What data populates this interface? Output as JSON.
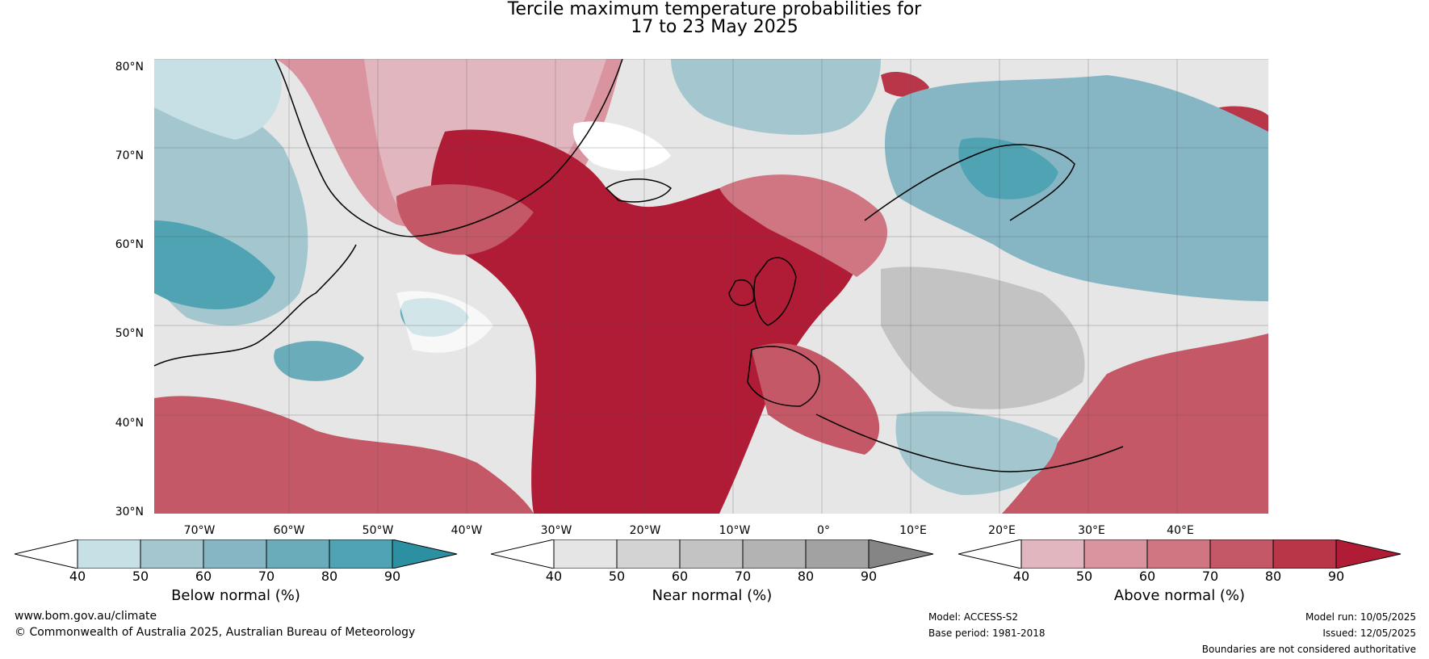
{
  "title_line1": "Tercile maximum temperature probabilities for",
  "title_line2": "17 to 23 May 2025",
  "latitudes": [
    "80°N",
    "70°N",
    "60°N",
    "50°N",
    "40°N",
    "30°N"
  ],
  "longitudes": [
    "70°W",
    "60°W",
    "50°W",
    "40°W",
    "30°W",
    "20°W",
    "10°W",
    "0°",
    "10°E",
    "20°E",
    "30°E",
    "40°E"
  ],
  "colorbars": [
    {
      "label": "Below normal (%)",
      "ticks": [
        "40",
        "50",
        "60",
        "70",
        "80",
        "90"
      ],
      "colors": [
        "#c7e0e6",
        "#a4c7cf",
        "#86b6c4",
        "#6aacb9",
        "#4fa3b3"
      ],
      "extend_color": "#2c8fa2"
    },
    {
      "label": "Near normal (%)",
      "ticks": [
        "40",
        "50",
        "60",
        "70",
        "80",
        "90"
      ],
      "colors": [
        "#e5e5e5",
        "#d3d3d3",
        "#c3c3c3",
        "#b3b3b3",
        "#a2a2a2"
      ],
      "extend_color": "#858585"
    },
    {
      "label": "Above normal (%)",
      "ticks": [
        "40",
        "50",
        "60",
        "70",
        "80",
        "90"
      ],
      "colors": [
        "#e2b6bf",
        "#d9949f",
        "#cf7682",
        "#c55866",
        "#b93548"
      ],
      "extend_color": "#b01c35"
    }
  ],
  "footer": {
    "website": "www.bom.gov.au/climate",
    "copyright": "© Commonwealth of Australia 2025, Australian Bureau of Meteorology",
    "model": "Model: ACCESS-S2",
    "base_period": "Base period: 1981-2018",
    "model_run": "Model run: 10/05/2025",
    "issued": "Issued: 12/05/2025",
    "disclaimer": "Boundaries are not considered authoritative"
  },
  "colors": {
    "below_strong": "#2c8fa2",
    "near_strong": "#858585",
    "above_strong": "#b01c35",
    "coastline": "#000000",
    "borders": "#777777"
  }
}
